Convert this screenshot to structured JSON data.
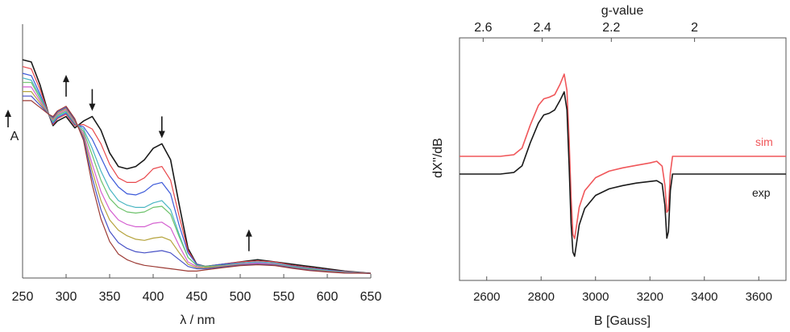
{
  "chart_data": [
    {
      "type": "line",
      "xlabel": "λ / nm",
      "ylabel": "A",
      "xlim": [
        250,
        650
      ],
      "x_ticks": [
        250,
        300,
        350,
        400,
        450,
        500,
        550,
        600,
        650
      ],
      "y_ticks": [],
      "grid": false,
      "legend": "none",
      "arrows": [
        {
          "x": 300,
          "direction": "up"
        },
        {
          "x": 330,
          "direction": "down"
        },
        {
          "x": 410,
          "direction": "down"
        },
        {
          "x": 510,
          "direction": "up"
        }
      ],
      "x": [
        250,
        260,
        270,
        280,
        285,
        290,
        300,
        310,
        320,
        330,
        340,
        350,
        360,
        370,
        380,
        390,
        400,
        410,
        420,
        430,
        440,
        450,
        460,
        480,
        500,
        520,
        540,
        560,
        580,
        600,
        620,
        650
      ],
      "series": [
        {
          "color": "#1a1a1a",
          "values": [
            0.95,
            0.94,
            0.84,
            0.71,
            0.66,
            0.68,
            0.7,
            0.65,
            0.68,
            0.7,
            0.64,
            0.54,
            0.48,
            0.47,
            0.48,
            0.51,
            0.56,
            0.58,
            0.51,
            0.31,
            0.12,
            0.05,
            0.04,
            0.05,
            0.06,
            0.07,
            0.06,
            0.05,
            0.04,
            0.03,
            0.02,
            0.01
          ]
        },
        {
          "color": "#e8474b",
          "values": [
            0.92,
            0.91,
            0.82,
            0.71,
            0.665,
            0.69,
            0.71,
            0.66,
            0.665,
            0.645,
            0.58,
            0.49,
            0.43,
            0.41,
            0.41,
            0.43,
            0.47,
            0.48,
            0.42,
            0.26,
            0.11,
            0.05,
            0.04,
            0.05,
            0.06,
            0.065,
            0.06,
            0.045,
            0.035,
            0.025,
            0.018,
            0.01
          ]
        },
        {
          "color": "#3b59d9",
          "values": [
            0.89,
            0.88,
            0.8,
            0.71,
            0.67,
            0.695,
            0.715,
            0.665,
            0.655,
            0.6,
            0.52,
            0.44,
            0.39,
            0.36,
            0.355,
            0.37,
            0.4,
            0.41,
            0.36,
            0.22,
            0.1,
            0.05,
            0.04,
            0.05,
            0.055,
            0.06,
            0.055,
            0.042,
            0.032,
            0.024,
            0.017,
            0.01
          ]
        },
        {
          "color": "#4ab6c2",
          "values": [
            0.87,
            0.86,
            0.79,
            0.71,
            0.675,
            0.7,
            0.72,
            0.67,
            0.645,
            0.56,
            0.46,
            0.38,
            0.33,
            0.31,
            0.3,
            0.3,
            0.32,
            0.33,
            0.29,
            0.18,
            0.08,
            0.045,
            0.04,
            0.045,
            0.055,
            0.06,
            0.055,
            0.04,
            0.03,
            0.022,
            0.016,
            0.01
          ]
        },
        {
          "color": "#6dc26b",
          "values": [
            0.85,
            0.85,
            0.78,
            0.71,
            0.68,
            0.705,
            0.725,
            0.67,
            0.635,
            0.53,
            0.42,
            0.34,
            0.3,
            0.28,
            0.275,
            0.28,
            0.3,
            0.305,
            0.27,
            0.17,
            0.08,
            0.045,
            0.04,
            0.045,
            0.05,
            0.055,
            0.05,
            0.038,
            0.028,
            0.02,
            0.015,
            0.01
          ]
        },
        {
          "color": "#d45fd0",
          "values": [
            0.83,
            0.83,
            0.77,
            0.71,
            0.685,
            0.71,
            0.73,
            0.675,
            0.625,
            0.49,
            0.37,
            0.29,
            0.245,
            0.225,
            0.215,
            0.215,
            0.23,
            0.235,
            0.21,
            0.13,
            0.06,
            0.04,
            0.035,
            0.042,
            0.05,
            0.055,
            0.05,
            0.036,
            0.026,
            0.019,
            0.014,
            0.01
          ]
        },
        {
          "color": "#b5a33c",
          "values": [
            0.81,
            0.81,
            0.76,
            0.71,
            0.69,
            0.715,
            0.735,
            0.68,
            0.615,
            0.46,
            0.33,
            0.245,
            0.2,
            0.175,
            0.16,
            0.155,
            0.165,
            0.17,
            0.155,
            0.1,
            0.05,
            0.035,
            0.035,
            0.04,
            0.048,
            0.05,
            0.048,
            0.035,
            0.025,
            0.018,
            0.013,
            0.01
          ]
        },
        {
          "color": "#4852c6",
          "values": [
            0.79,
            0.79,
            0.75,
            0.71,
            0.695,
            0.72,
            0.74,
            0.685,
            0.605,
            0.43,
            0.29,
            0.195,
            0.145,
            0.12,
            0.105,
            0.1,
            0.105,
            0.11,
            0.1,
            0.07,
            0.04,
            0.03,
            0.03,
            0.038,
            0.046,
            0.05,
            0.046,
            0.034,
            0.024,
            0.017,
            0.012,
            0.01
          ]
        },
        {
          "color": "#9c3a34",
          "values": [
            0.77,
            0.77,
            0.74,
            0.71,
            0.7,
            0.725,
            0.745,
            0.69,
            0.595,
            0.4,
            0.25,
            0.15,
            0.095,
            0.07,
            0.055,
            0.045,
            0.04,
            0.035,
            0.03,
            0.025,
            0.02,
            0.02,
            0.025,
            0.035,
            0.044,
            0.048,
            0.044,
            0.032,
            0.022,
            0.016,
            0.011,
            0.01
          ]
        }
      ]
    },
    {
      "type": "line",
      "xlabel": "B [Gauss]",
      "ylabel": "dX''/dB",
      "x2label": "g-value",
      "xlim": [
        2500,
        3700
      ],
      "x_ticks": [
        2600,
        2800,
        3000,
        3200,
        3400,
        3600
      ],
      "x2_ticks": [
        {
          "label": "2.6",
          "field": 2587
        },
        {
          "label": "2.4",
          "field": 2804
        },
        {
          "label": "2.2",
          "field": 3058
        },
        {
          "label": "2",
          "field": 3364
        }
      ],
      "grid": false,
      "legend": "inline-right",
      "x": [
        2500,
        2650,
        2700,
        2730,
        2760,
        2790,
        2810,
        2830,
        2850,
        2870,
        2885,
        2895,
        2903,
        2910,
        2917,
        2923,
        2930,
        2940,
        2960,
        3000,
        3050,
        3100,
        3150,
        3200,
        3225,
        3245,
        3255,
        3262,
        3268,
        3275,
        3283,
        3300,
        3500,
        3700
      ],
      "series": [
        {
          "name": "sim",
          "color": "#f0575a",
          "values": [
            0.0,
            0.0,
            0.02,
            0.1,
            0.38,
            0.62,
            0.7,
            0.72,
            0.75,
            0.88,
            1.0,
            0.8,
            0.2,
            -0.5,
            -0.95,
            -1.0,
            -0.85,
            -0.62,
            -0.42,
            -0.26,
            -0.18,
            -0.14,
            -0.11,
            -0.08,
            -0.06,
            -0.12,
            -0.35,
            -0.68,
            -0.65,
            -0.2,
            0.0,
            0.0,
            0.0,
            0.0
          ]
        },
        {
          "name": "exp",
          "color": "#1a1a1a",
          "values": [
            0.0,
            0.0,
            0.02,
            0.1,
            0.38,
            0.62,
            0.72,
            0.74,
            0.78,
            0.9,
            1.0,
            0.78,
            0.1,
            -0.6,
            -0.95,
            -1.0,
            -0.85,
            -0.62,
            -0.42,
            -0.26,
            -0.18,
            -0.14,
            -0.11,
            -0.09,
            -0.08,
            -0.12,
            -0.38,
            -0.78,
            -0.7,
            -0.2,
            0.0,
            0.0,
            0.0,
            0.0
          ]
        }
      ]
    }
  ]
}
